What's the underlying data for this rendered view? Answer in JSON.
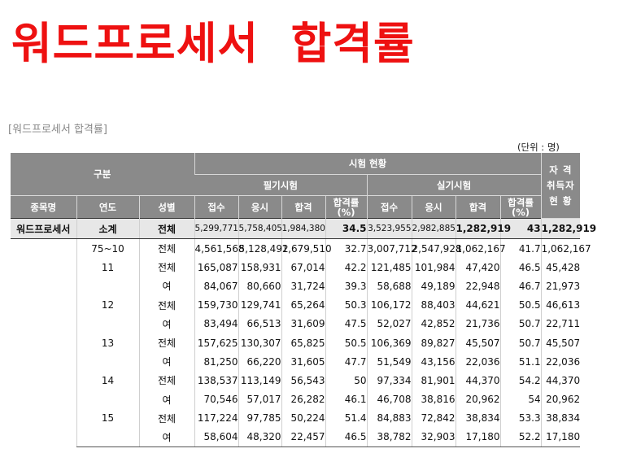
{
  "title": "워드프로세서  합격률",
  "subtitle": "[워드프로세서 합격률]",
  "unit": "(단위 : 명)",
  "headers": {
    "category": "구분",
    "exam_status": "시험 현황",
    "written_exam": "필기시험",
    "practical_exam": "실기시험",
    "certified_line1": "자 격",
    "certified_line2": "취득자",
    "certified_line3": "현 황",
    "item_name": "종목명",
    "year": "연도",
    "gender": "성별",
    "applied": "접수",
    "took": "응시",
    "passed": "합격",
    "pass_rate_line1": "합격률",
    "pass_rate_line2": "(%)"
  },
  "summary": {
    "item_name": "워드프로세서",
    "year": "소계",
    "gender": "전체",
    "written": [
      "5,299,771",
      "5,758,405",
      "1,984,380",
      "34.5"
    ],
    "practical": [
      "3,523,955",
      "2,982,885",
      "1,282,919",
      "43"
    ],
    "certified": "1,282,919"
  },
  "rows": [
    {
      "year": "75~10",
      "gender": "전체",
      "written": [
        "4,561,568",
        "5,128,492",
        "1,679,510",
        "32.7"
      ],
      "practical": [
        "3,007,712",
        "2,547,928",
        "1,062,167",
        "41.7"
      ],
      "certified": "1,062,167"
    },
    {
      "year": "11",
      "gender": "전체",
      "written": [
        "165,087",
        "158,931",
        "67,014",
        "42.2"
      ],
      "practical": [
        "121,485",
        "101,984",
        "47,420",
        "46.5"
      ],
      "certified": "45,428"
    },
    {
      "year": "",
      "gender": "여",
      "written": [
        "84,067",
        "80,660",
        "31,724",
        "39.3"
      ],
      "practical": [
        "58,688",
        "49,189",
        "22,948",
        "46.7"
      ],
      "certified": "21,973"
    },
    {
      "year": "12",
      "gender": "전체",
      "written": [
        "159,730",
        "129,741",
        "65,264",
        "50.3"
      ],
      "practical": [
        "106,172",
        "88,403",
        "44,621",
        "50.5"
      ],
      "certified": "46,613"
    },
    {
      "year": "",
      "gender": "여",
      "written": [
        "83,494",
        "66,513",
        "31,609",
        "47.5"
      ],
      "practical": [
        "52,027",
        "42,852",
        "21,736",
        "50.7"
      ],
      "certified": "22,711"
    },
    {
      "year": "13",
      "gender": "전체",
      "written": [
        "157,625",
        "130,307",
        "65,825",
        "50.5"
      ],
      "practical": [
        "106,369",
        "89,827",
        "45,507",
        "50.7"
      ],
      "certified": "45,507"
    },
    {
      "year": "",
      "gender": "여",
      "written": [
        "81,250",
        "66,220",
        "31,605",
        "47.7"
      ],
      "practical": [
        "51,549",
        "43,156",
        "22,036",
        "51.1"
      ],
      "certified": "22,036"
    },
    {
      "year": "14",
      "gender": "전체",
      "written": [
        "138,537",
        "113,149",
        "56,543",
        "50"
      ],
      "practical": [
        "97,334",
        "81,901",
        "44,370",
        "54.2"
      ],
      "certified": "44,370"
    },
    {
      "year": "",
      "gender": "여",
      "written": [
        "70,546",
        "57,017",
        "26,282",
        "46.1"
      ],
      "practical": [
        "46,708",
        "38,816",
        "20,962",
        "54"
      ],
      "certified": "20,962"
    },
    {
      "year": "15",
      "gender": "전체",
      "written": [
        "117,224",
        "97,785",
        "50,224",
        "51.4"
      ],
      "practical": [
        "84,883",
        "72,842",
        "38,834",
        "53.3"
      ],
      "certified": "38,834"
    },
    {
      "year": "",
      "gender": "여",
      "written": [
        "58,604",
        "48,320",
        "22,457",
        "46.5"
      ],
      "practical": [
        "38,782",
        "32,903",
        "17,180",
        "52.2"
      ],
      "certified": "17,180"
    }
  ]
}
